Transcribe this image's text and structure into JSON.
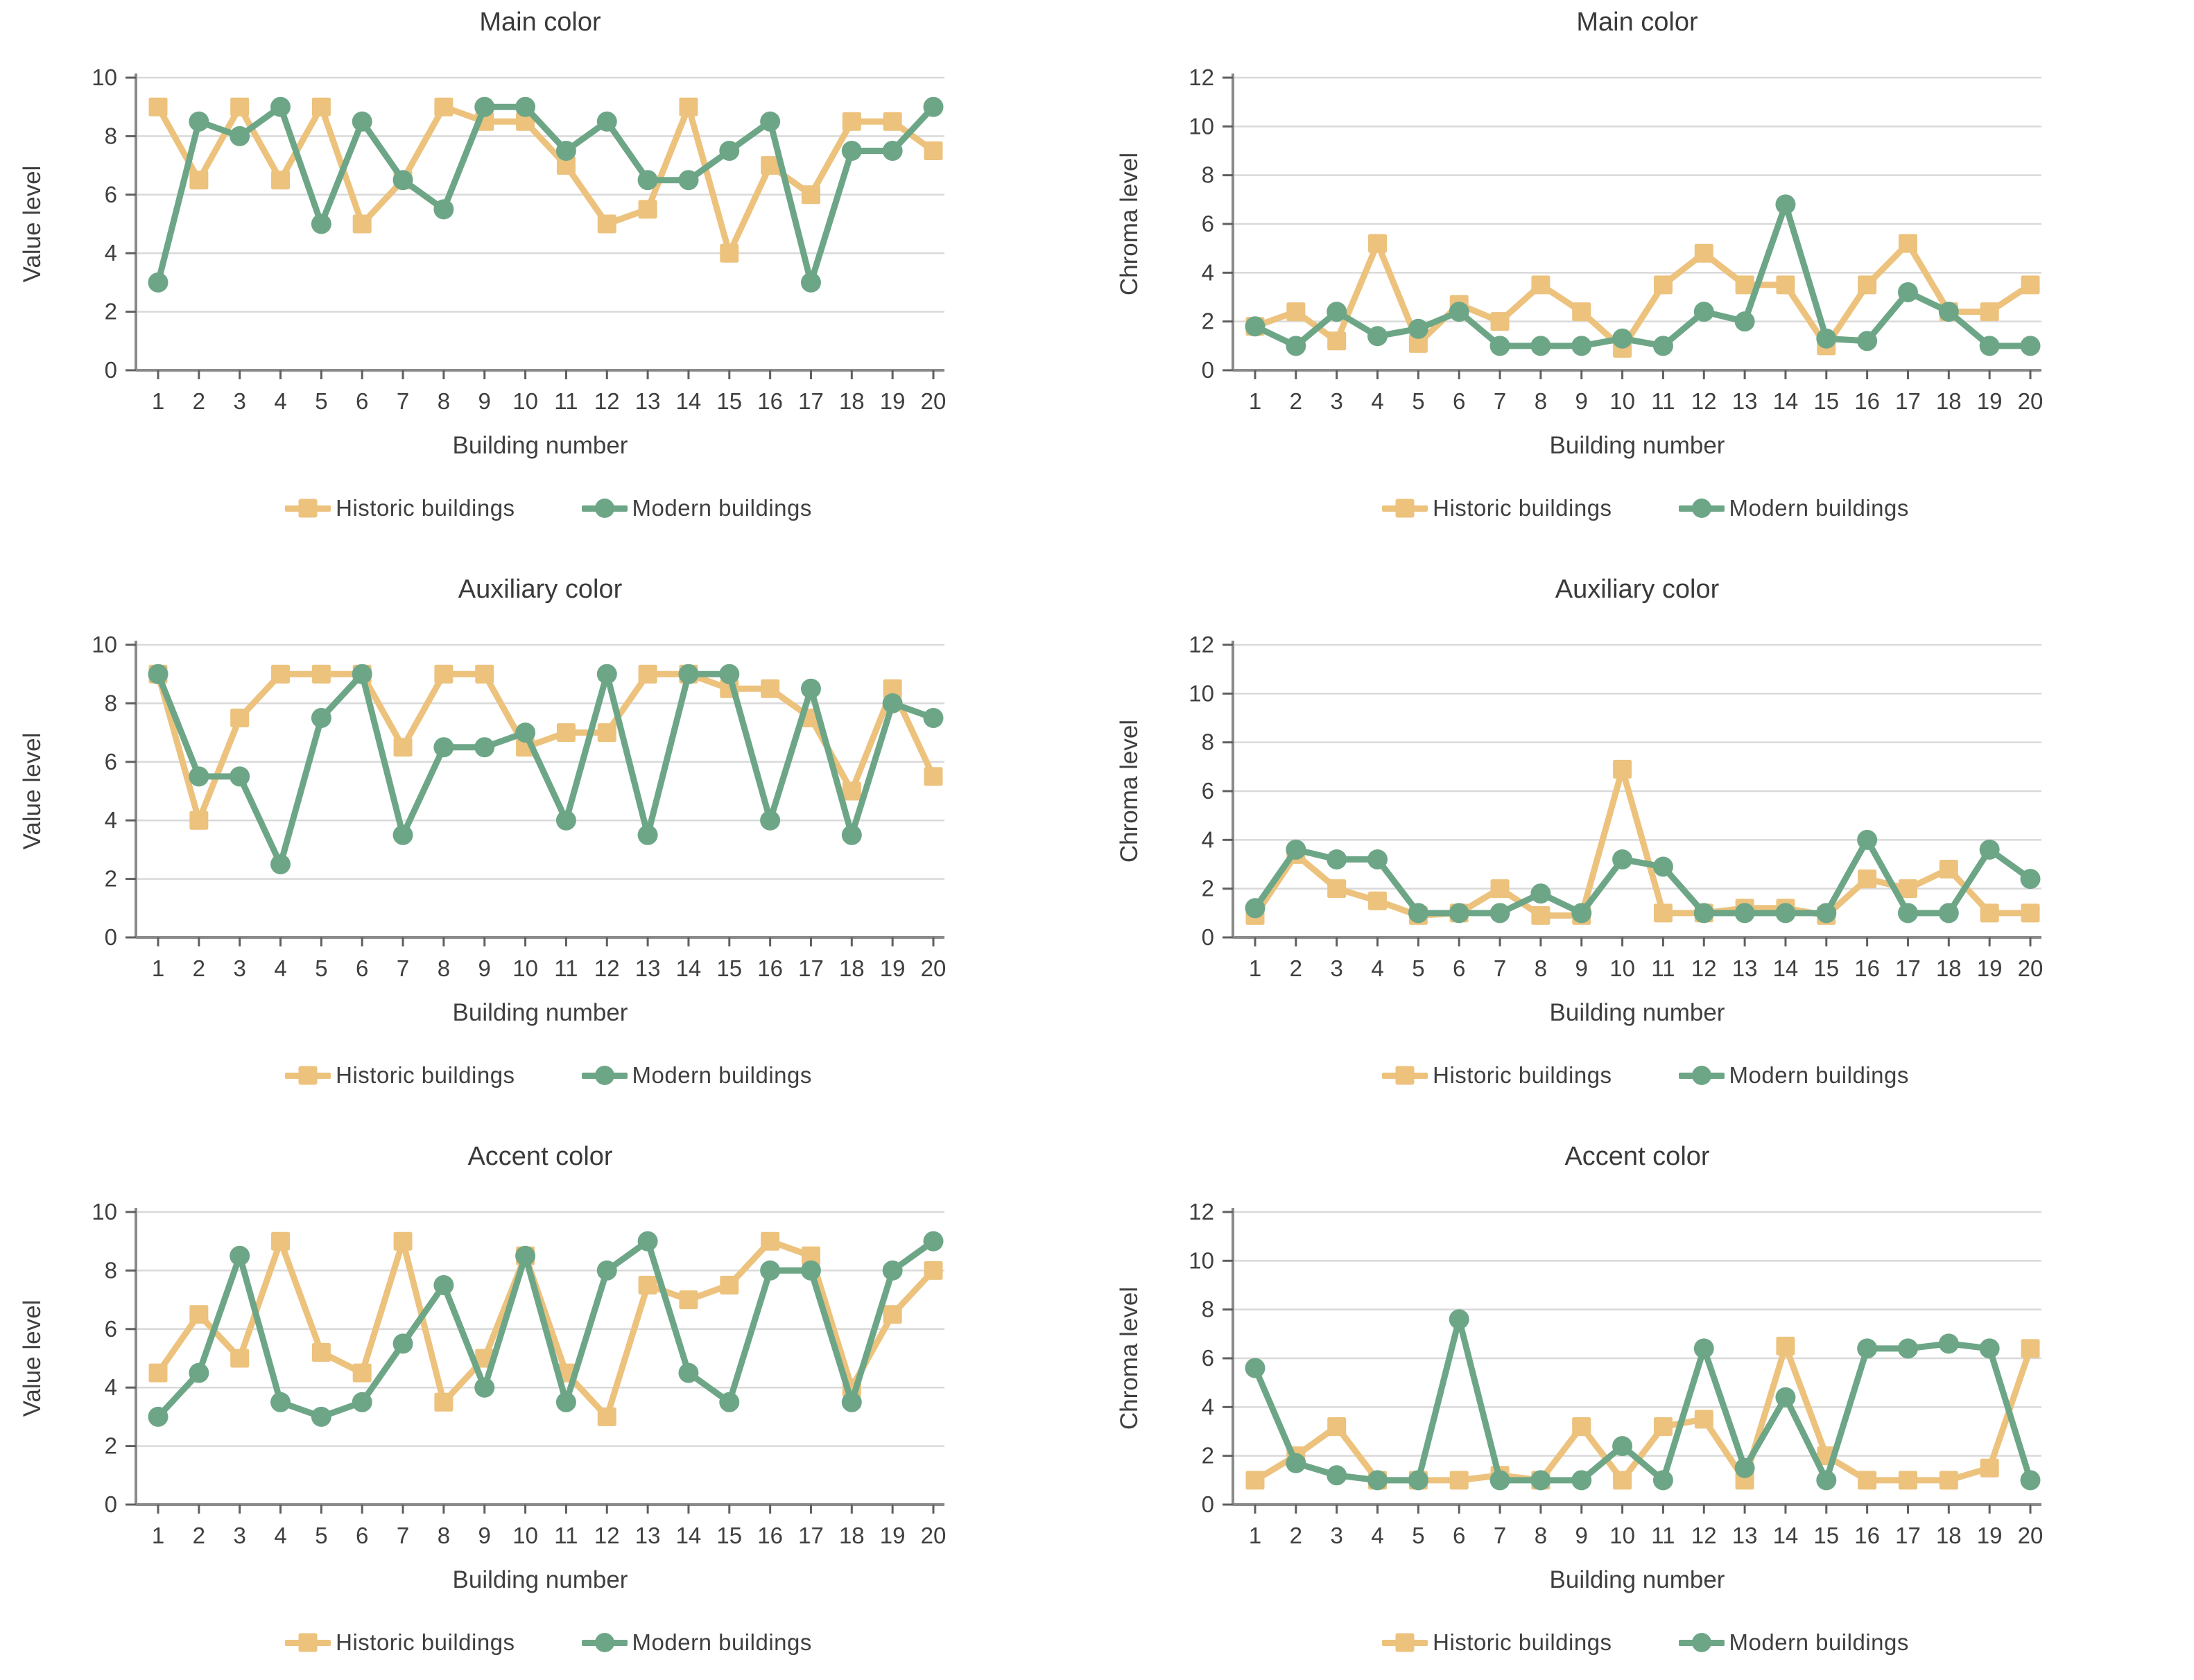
{
  "colors": {
    "historic": "#ecc27d",
    "modern": "#6da687",
    "grid": "#d9d9d9",
    "axis": "#8a8a8a",
    "tick": "#5f5f5f",
    "text": "#3f3f3f",
    "title": "#3a3a3a"
  },
  "legend": {
    "historic": "Historic buildings",
    "modern": "Modern buildings"
  },
  "x_axis": {
    "label": "Building number",
    "categories": [
      1,
      2,
      3,
      4,
      5,
      6,
      7,
      8,
      9,
      10,
      11,
      12,
      13,
      14,
      15,
      16,
      17,
      18,
      19,
      20
    ]
  },
  "chart_data": [
    {
      "id": "main-color-value-level",
      "type": "line",
      "title": "Main color",
      "xlabel": "Building number",
      "ylabel": "Value level",
      "ylim": [
        0,
        10
      ],
      "ytick_step": 2,
      "grid": true,
      "legend_position": "bottom",
      "series": [
        {
          "name": "Historic buildings",
          "color_key": "historic",
          "marker": "square",
          "values": [
            9,
            6.5,
            9,
            6.5,
            9,
            5,
            6.5,
            9,
            8.5,
            8.5,
            7,
            5,
            5.5,
            9,
            4,
            7,
            6,
            8.5,
            8.5,
            7.5
          ]
        },
        {
          "name": "Modern buildings",
          "color_key": "modern",
          "marker": "circle",
          "values": [
            3,
            8.5,
            8,
            9,
            5,
            8.5,
            6.5,
            5.5,
            9,
            9,
            7.5,
            8.5,
            6.5,
            6.5,
            7.5,
            8.5,
            3,
            7.5,
            7.5,
            9
          ]
        }
      ]
    },
    {
      "id": "main-color-chroma-level",
      "type": "line",
      "title": "Main color",
      "xlabel": "Building number",
      "ylabel": "Chroma level",
      "ylim": [
        0,
        12
      ],
      "ytick_step": 2,
      "grid": true,
      "legend_position": "bottom",
      "series": [
        {
          "name": "Historic buildings",
          "color_key": "historic",
          "marker": "square",
          "values": [
            1.8,
            2.4,
            1.2,
            5.2,
            1.1,
            2.7,
            2,
            3.5,
            2.4,
            0.9,
            3.5,
            4.8,
            3.5,
            3.5,
            1,
            3.5,
            5.2,
            2.4,
            2.4,
            3.5
          ]
        },
        {
          "name": "Modern buildings",
          "color_key": "modern",
          "marker": "circle",
          "values": [
            1.8,
            1,
            2.4,
            1.4,
            1.7,
            2.4,
            1,
            1,
            1,
            1.3,
            1,
            2.4,
            2,
            6.8,
            1.3,
            1.2,
            3.2,
            2.4,
            1,
            1
          ]
        }
      ]
    },
    {
      "id": "auxiliary-color-value-level",
      "type": "line",
      "title": "Auxiliary color",
      "xlabel": "Building number",
      "ylabel": "Value level",
      "ylim": [
        0,
        10
      ],
      "ytick_step": 2,
      "grid": true,
      "legend_position": "bottom",
      "series": [
        {
          "name": "Historic buildings",
          "color_key": "historic",
          "marker": "square",
          "values": [
            9,
            4,
            7.5,
            9,
            9,
            9,
            6.5,
            9,
            9,
            6.5,
            7,
            7,
            9,
            9,
            8.5,
            8.5,
            7.5,
            5,
            8.5,
            5.5
          ]
        },
        {
          "name": "Modern buildings",
          "color_key": "modern",
          "marker": "circle",
          "values": [
            9,
            5.5,
            5.5,
            2.5,
            7.5,
            9,
            3.5,
            6.5,
            6.5,
            7,
            4,
            9,
            3.5,
            9,
            9,
            4,
            8.5,
            3.5,
            8,
            7.5
          ]
        }
      ]
    },
    {
      "id": "auxiliary-color-chroma-level",
      "type": "line",
      "title": "Auxiliary color",
      "xlabel": "Building number",
      "ylabel": "Chroma level",
      "ylim": [
        0,
        12
      ],
      "ytick_step": 2,
      "grid": true,
      "legend_position": "bottom",
      "series": [
        {
          "name": "Historic buildings",
          "color_key": "historic",
          "marker": "square",
          "values": [
            0.9,
            3.4,
            2,
            1.5,
            0.9,
            1,
            2,
            0.9,
            0.9,
            6.9,
            1,
            1,
            1.2,
            1.2,
            0.9,
            2.4,
            2,
            2.8,
            1,
            1
          ]
        },
        {
          "name": "Modern buildings",
          "color_key": "modern",
          "marker": "circle",
          "values": [
            1.2,
            3.6,
            3.2,
            3.2,
            1,
            1,
            1,
            1.8,
            1,
            3.2,
            2.9,
            1,
            1,
            1,
            1,
            4,
            1,
            1,
            3.6,
            2.4
          ]
        }
      ]
    },
    {
      "id": "accent-color-value-level",
      "type": "line",
      "title": "Accent color",
      "xlabel": "Building number",
      "ylabel": "Value level",
      "ylim": [
        0,
        10
      ],
      "ytick_step": 2,
      "grid": true,
      "legend_position": "bottom",
      "series": [
        {
          "name": "Historic buildings",
          "color_key": "historic",
          "marker": "square",
          "values": [
            4.5,
            6.5,
            5,
            9,
            5.2,
            4.5,
            9,
            3.5,
            5,
            8.5,
            4.5,
            3,
            7.5,
            7,
            7.5,
            9,
            8.5,
            4,
            6.5,
            8
          ]
        },
        {
          "name": "Modern buildings",
          "color_key": "modern",
          "marker": "circle",
          "values": [
            3,
            4.5,
            8.5,
            3.5,
            3,
            3.5,
            5.5,
            7.5,
            4,
            8.5,
            3.5,
            8,
            9,
            4.5,
            3.5,
            8,
            8,
            3.5,
            8,
            9
          ]
        }
      ]
    },
    {
      "id": "accent-color-chroma-level",
      "type": "line",
      "title": "Accent color",
      "xlabel": "Building number",
      "ylabel": "Chroma level",
      "ylim": [
        0,
        12
      ],
      "ytick_step": 2,
      "grid": true,
      "legend_position": "bottom",
      "series": [
        {
          "name": "Historic buildings",
          "color_key": "historic",
          "marker": "square",
          "values": [
            1,
            2,
            3.2,
            1,
            1,
            1,
            1.2,
            1,
            3.2,
            1,
            3.2,
            3.5,
            1,
            6.5,
            2,
            1,
            1,
            1,
            1.5,
            6.4
          ]
        },
        {
          "name": "Modern buildings",
          "color_key": "modern",
          "marker": "circle",
          "values": [
            5.6,
            1.7,
            1.2,
            1,
            1,
            7.6,
            1,
            1,
            1,
            2.4,
            1,
            6.4,
            1.5,
            4.4,
            1,
            6.4,
            6.4,
            6.6,
            6.4,
            1
          ]
        }
      ]
    }
  ]
}
